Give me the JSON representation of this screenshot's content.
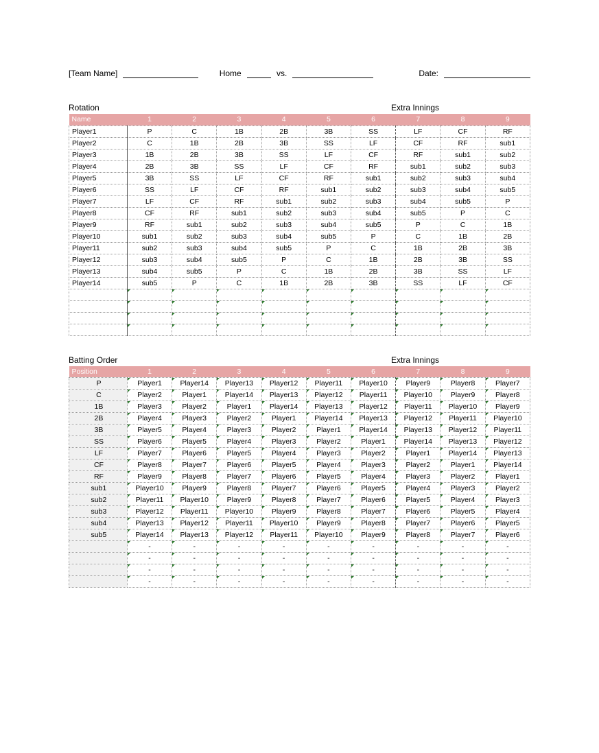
{
  "header": {
    "team_label": "[Team Name]",
    "home_label": "Home",
    "vs_label": "vs.",
    "date_label": "Date:"
  },
  "colors": {
    "header_bg": "#e6a5a5",
    "header_text": "#ffffff",
    "tick": "#2d7a2d"
  },
  "rotation": {
    "title": "Rotation",
    "extra_title": "Extra Innings",
    "columns": [
      "Name",
      "1",
      "2",
      "3",
      "4",
      "5",
      "6",
      "7",
      "8",
      "9"
    ],
    "rows": [
      [
        "Player1",
        "P",
        "C",
        "1B",
        "2B",
        "3B",
        "SS",
        "LF",
        "CF",
        "RF"
      ],
      [
        "Player2",
        "C",
        "1B",
        "2B",
        "3B",
        "SS",
        "LF",
        "CF",
        "RF",
        "sub1"
      ],
      [
        "Player3",
        "1B",
        "2B",
        "3B",
        "SS",
        "LF",
        "CF",
        "RF",
        "sub1",
        "sub2"
      ],
      [
        "Player4",
        "2B",
        "3B",
        "SS",
        "LF",
        "CF",
        "RF",
        "sub1",
        "sub2",
        "sub3"
      ],
      [
        "Player5",
        "3B",
        "SS",
        "LF",
        "CF",
        "RF",
        "sub1",
        "sub2",
        "sub3",
        "sub4"
      ],
      [
        "Player6",
        "SS",
        "LF",
        "CF",
        "RF",
        "sub1",
        "sub2",
        "sub3",
        "sub4",
        "sub5"
      ],
      [
        "Player7",
        "LF",
        "CF",
        "RF",
        "sub1",
        "sub2",
        "sub3",
        "sub4",
        "sub5",
        "P"
      ],
      [
        "Player8",
        "CF",
        "RF",
        "sub1",
        "sub2",
        "sub3",
        "sub4",
        "sub5",
        "P",
        "C"
      ],
      [
        "Player9",
        "RF",
        "sub1",
        "sub2",
        "sub3",
        "sub4",
        "sub5",
        "P",
        "C",
        "1B"
      ],
      [
        "Player10",
        "sub1",
        "sub2",
        "sub3",
        "sub4",
        "sub5",
        "P",
        "C",
        "1B",
        "2B"
      ],
      [
        "Player11",
        "sub2",
        "sub3",
        "sub4",
        "sub5",
        "P",
        "C",
        "1B",
        "2B",
        "3B"
      ],
      [
        "Player12",
        "sub3",
        "sub4",
        "sub5",
        "P",
        "C",
        "1B",
        "2B",
        "3B",
        "SS"
      ],
      [
        "Player13",
        "sub4",
        "sub5",
        "P",
        "C",
        "1B",
        "2B",
        "3B",
        "SS",
        "LF"
      ],
      [
        "Player14",
        "sub5",
        "P",
        "C",
        "1B",
        "2B",
        "3B",
        "SS",
        "LF",
        "CF"
      ]
    ],
    "blank_rows": 4
  },
  "batting": {
    "title": "Batting Order",
    "extra_title": "Extra Innings",
    "columns": [
      "Position",
      "1",
      "2",
      "3",
      "4",
      "5",
      "6",
      "7",
      "8",
      "9"
    ],
    "rows": [
      [
        "P",
        "Player1",
        "Player14",
        "Player13",
        "Player12",
        "Player11",
        "Player10",
        "Player9",
        "Player8",
        "Player7"
      ],
      [
        "C",
        "Player2",
        "Player1",
        "Player14",
        "Player13",
        "Player12",
        "Player11",
        "Player10",
        "Player9",
        "Player8"
      ],
      [
        "1B",
        "Player3",
        "Player2",
        "Player1",
        "Player14",
        "Player13",
        "Player12",
        "Player11",
        "Player10",
        "Player9"
      ],
      [
        "2B",
        "Player4",
        "Player3",
        "Player2",
        "Player1",
        "Player14",
        "Player13",
        "Player12",
        "Player11",
        "Player10"
      ],
      [
        "3B",
        "Player5",
        "Player4",
        "Player3",
        "Player2",
        "Player1",
        "Player14",
        "Player13",
        "Player12",
        "Player11"
      ],
      [
        "SS",
        "Player6",
        "Player5",
        "Player4",
        "Player3",
        "Player2",
        "Player1",
        "Player14",
        "Player13",
        "Player12"
      ],
      [
        "LF",
        "Player7",
        "Player6",
        "Player5",
        "Player4",
        "Player3",
        "Player2",
        "Player1",
        "Player14",
        "Player13"
      ],
      [
        "CF",
        "Player8",
        "Player7",
        "Player6",
        "Player5",
        "Player4",
        "Player3",
        "Player2",
        "Player1",
        "Player14"
      ],
      [
        "RF",
        "Player9",
        "Player8",
        "Player7",
        "Player6",
        "Player5",
        "Player4",
        "Player3",
        "Player2",
        "Player1"
      ],
      [
        "sub1",
        "Player10",
        "Player9",
        "Player8",
        "Player7",
        "Player6",
        "Player5",
        "Player4",
        "Player3",
        "Player2"
      ],
      [
        "sub2",
        "Player11",
        "Player10",
        "Player9",
        "Player8",
        "Player7",
        "Player6",
        "Player5",
        "Player4",
        "Player3"
      ],
      [
        "sub3",
        "Player12",
        "Player11",
        "Player10",
        "Player9",
        "Player8",
        "Player7",
        "Player6",
        "Player5",
        "Player4"
      ],
      [
        "sub4",
        "Player13",
        "Player12",
        "Player11",
        "Player10",
        "Player9",
        "Player8",
        "Player7",
        "Player6",
        "Player5"
      ],
      [
        "sub5",
        "Player14",
        "Player13",
        "Player12",
        "Player11",
        "Player10",
        "Player9",
        "Player8",
        "Player7",
        "Player6"
      ]
    ],
    "dash_rows": 4,
    "dash": "-"
  }
}
